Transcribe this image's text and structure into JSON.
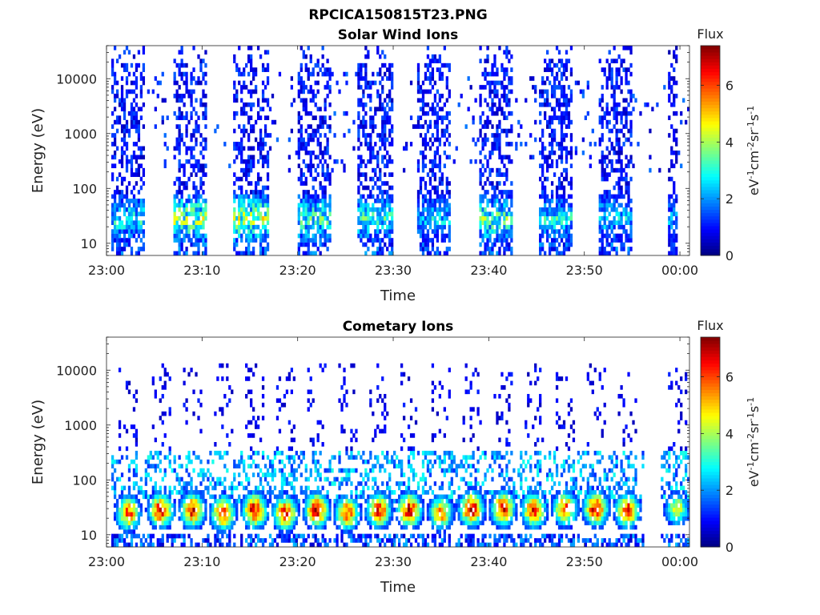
{
  "figure": {
    "title": "RPCICA150815T23.PNG"
  },
  "chart_data": [
    {
      "type": "heatmap",
      "title": "Solar Wind Ions",
      "xlabel": "Time",
      "ylabel": "Energy (eV)",
      "y_scale": "log",
      "xlim": [
        "23:00",
        "00:01"
      ],
      "ylim": [
        6,
        40000
      ],
      "x_ticks": [
        "23:00",
        "23:10",
        "23:20",
        "23:30",
        "23:40",
        "23:50",
        "00:00"
      ],
      "y_ticks": [
        "10",
        "100",
        "1000",
        "10000"
      ],
      "colorbar": {
        "title": "Flux",
        "label": "eV-1cm-2sr-1s-1",
        "min": 0,
        "max": 7.4,
        "ticks": [
          "0",
          "2",
          "4",
          "6"
        ],
        "colormap": "jet"
      },
      "bursts": [
        {
          "start": "23:00.5",
          "end": "23:04.0",
          "low_energy_peak_flux": 3.5,
          "high_energy_flux": 1.0
        },
        {
          "start": "23:07.0",
          "end": "23:10.5",
          "low_energy_peak_flux": 4.5,
          "high_energy_flux": 1.0
        },
        {
          "start": "23:13.3",
          "end": "23:17.0",
          "low_energy_peak_flux": 4.5,
          "high_energy_flux": 1.0
        },
        {
          "start": "23:20.0",
          "end": "23:23.5",
          "low_energy_peak_flux": 3.8,
          "high_energy_flux": 1.0
        },
        {
          "start": "23:26.3",
          "end": "23:30.0",
          "low_energy_peak_flux": 3.5,
          "high_energy_flux": 1.0
        },
        {
          "start": "23:32.5",
          "end": "23:36.0",
          "low_energy_peak_flux": 3.0,
          "high_energy_flux": 1.0
        },
        {
          "start": "23:39.0",
          "end": "23:42.5",
          "low_energy_peak_flux": 4.0,
          "high_energy_flux": 1.0
        },
        {
          "start": "23:45.2",
          "end": "23:48.8",
          "low_energy_peak_flux": 3.3,
          "high_energy_flux": 1.0
        },
        {
          "start": "23:51.5",
          "end": "23:55.0",
          "low_energy_peak_flux": 3.0,
          "high_energy_flux": 1.0
        },
        {
          "start": "23:58.7",
          "end": "23:59.8",
          "low_energy_peak_flux": 2.5,
          "high_energy_flux": 0.8
        }
      ]
    },
    {
      "type": "heatmap",
      "title": "Cometary Ions",
      "xlabel": "Time",
      "ylabel": "Energy (eV)",
      "y_scale": "log",
      "xlim": [
        "23:00",
        "00:01"
      ],
      "ylim": [
        6,
        40000
      ],
      "x_ticks": [
        "23:00",
        "23:10",
        "23:20",
        "23:30",
        "23:40",
        "23:50",
        "00:00"
      ],
      "y_ticks": [
        "10",
        "100",
        "1000",
        "10000"
      ],
      "colorbar": {
        "title": "Flux",
        "label": "eV-1cm-2sr-1s-1",
        "min": 0,
        "max": 7.4,
        "ticks": [
          "0",
          "2",
          "4",
          "6"
        ],
        "colormap": "jet"
      },
      "blobs": [
        {
          "time": "23:02.3",
          "energy_eV": 25,
          "peak_flux": 6.0
        },
        {
          "time": "23:05.7",
          "energy_eV": 28,
          "peak_flux": 6.6
        },
        {
          "time": "23:09.0",
          "energy_eV": 28,
          "peak_flux": 6.5
        },
        {
          "time": "23:12.2",
          "energy_eV": 25,
          "peak_flux": 6.5
        },
        {
          "time": "23:15.5",
          "energy_eV": 28,
          "peak_flux": 6.8
        },
        {
          "time": "23:18.7",
          "energy_eV": 25,
          "peak_flux": 6.3
        },
        {
          "time": "23:22.0",
          "energy_eV": 28,
          "peak_flux": 6.8
        },
        {
          "time": "23:25.2",
          "energy_eV": 25,
          "peak_flux": 6.0
        },
        {
          "time": "23:28.5",
          "energy_eV": 28,
          "peak_flux": 6.5
        },
        {
          "time": "23:31.7",
          "energy_eV": 28,
          "peak_flux": 6.8
        },
        {
          "time": "23:35.0",
          "energy_eV": 25,
          "peak_flux": 5.5
        },
        {
          "time": "23:38.2",
          "energy_eV": 30,
          "peak_flux": 7.0
        },
        {
          "time": "23:41.5",
          "energy_eV": 30,
          "peak_flux": 6.5
        },
        {
          "time": "23:44.7",
          "energy_eV": 28,
          "peak_flux": 6.3
        },
        {
          "time": "23:48.0",
          "energy_eV": 30,
          "peak_flux": 6.0
        },
        {
          "time": "23:51.2",
          "energy_eV": 30,
          "peak_flux": 6.7
        },
        {
          "time": "23:54.5",
          "energy_eV": 28,
          "peak_flux": 6.5
        },
        {
          "time": "23:59.7",
          "energy_eV": 30,
          "peak_flux": 4.5
        }
      ]
    }
  ]
}
